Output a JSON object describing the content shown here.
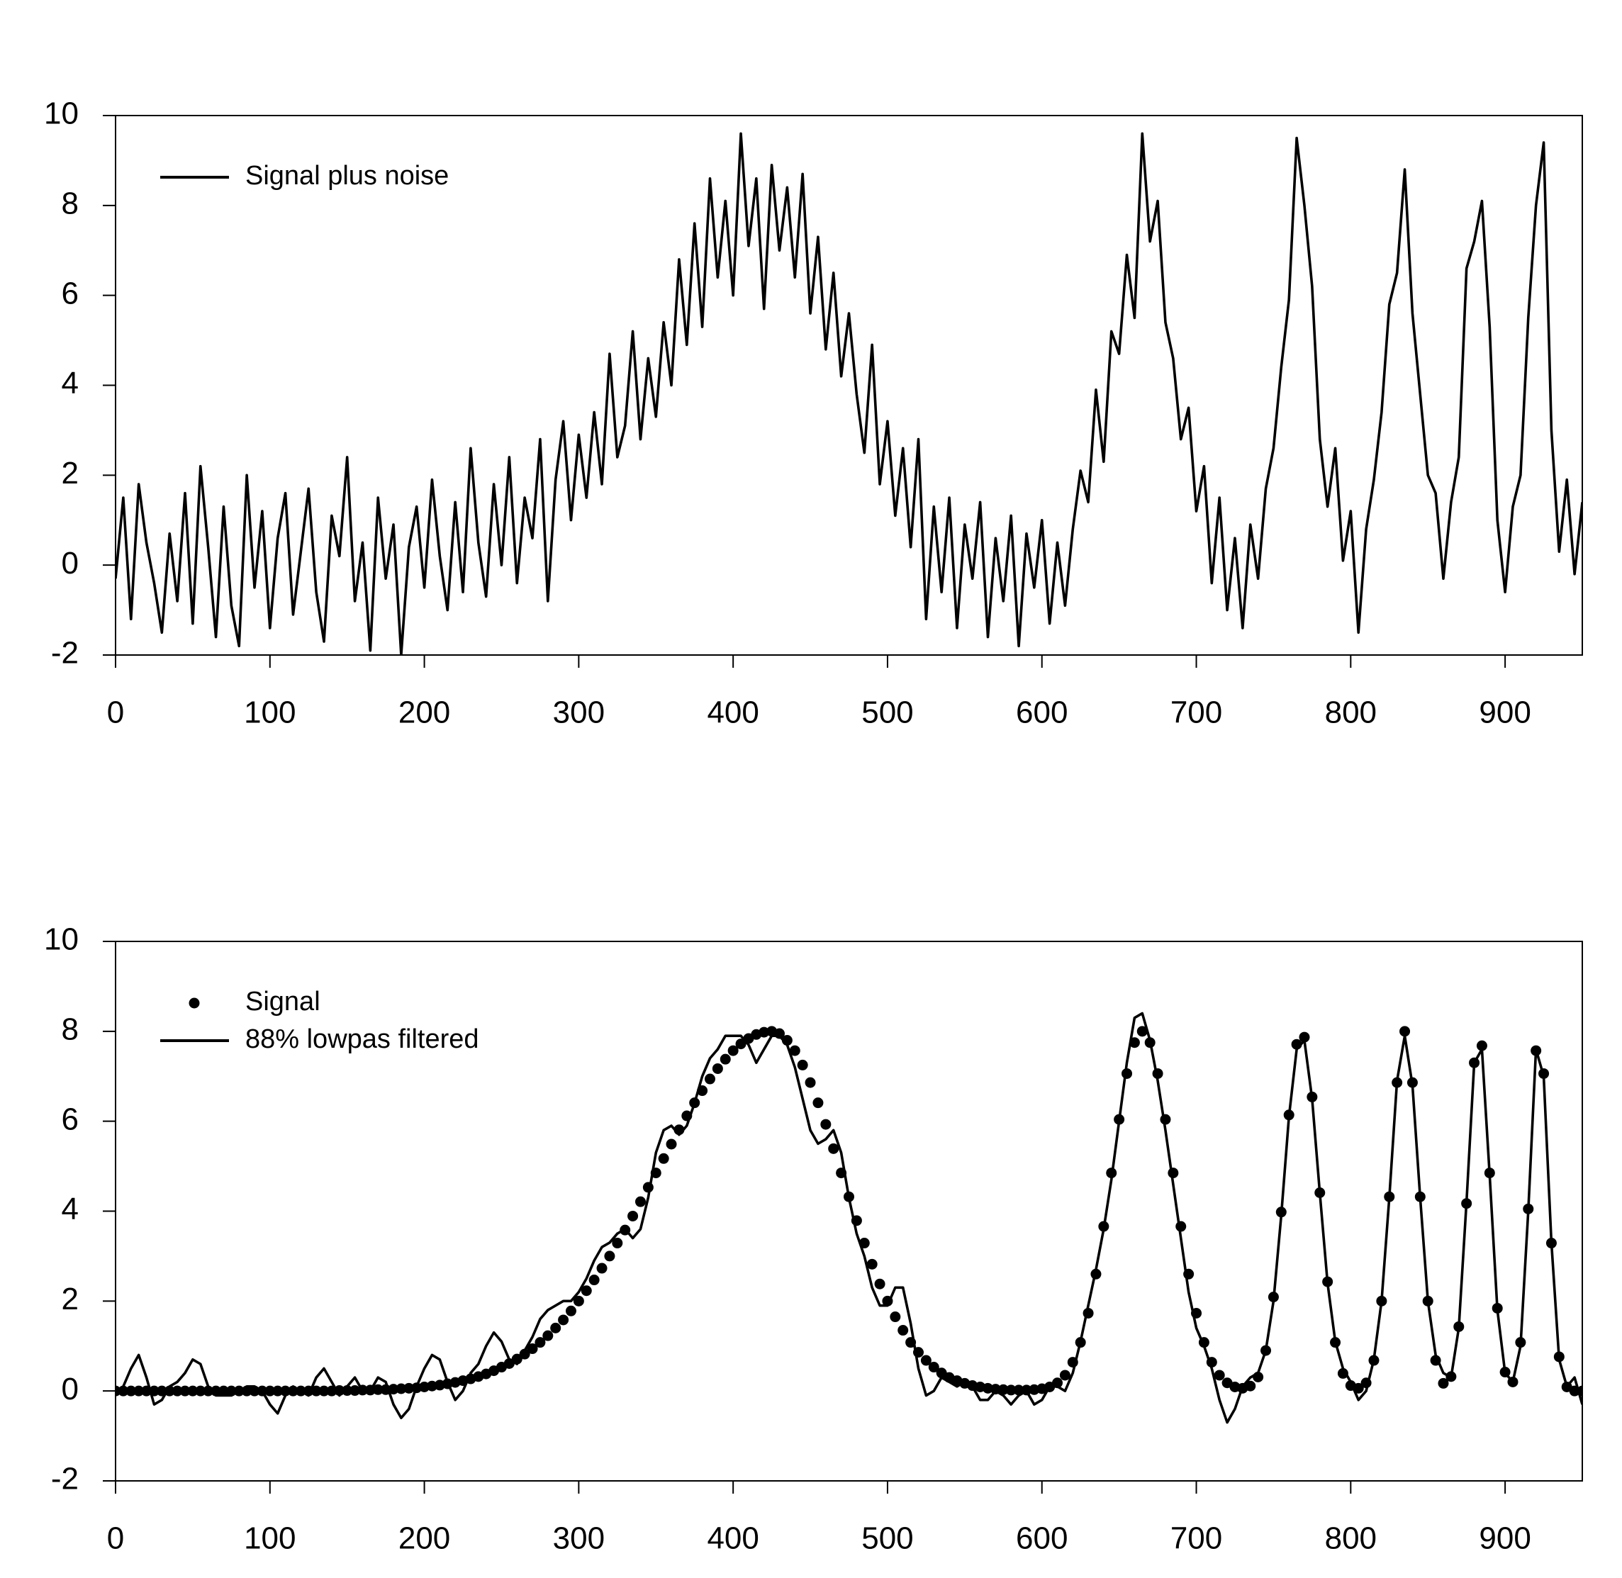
{
  "chart_data": [
    {
      "type": "line",
      "legend": "upper left",
      "xlim": [
        0,
        950
      ],
      "ylim": [
        -2,
        10
      ],
      "xticks": [
        0,
        100,
        200,
        300,
        400,
        500,
        600,
        700,
        800,
        900
      ],
      "yticks": [
        -2,
        0,
        2,
        4,
        6,
        8,
        10
      ],
      "x": [
        0,
        5,
        10,
        15,
        20,
        25,
        30,
        35,
        40,
        45,
        50,
        55,
        60,
        65,
        70,
        75,
        80,
        85,
        90,
        95,
        100,
        105,
        110,
        115,
        120,
        125,
        130,
        135,
        140,
        145,
        150,
        155,
        160,
        165,
        170,
        175,
        180,
        185,
        190,
        195,
        200,
        205,
        210,
        215,
        220,
        225,
        230,
        235,
        240,
        245,
        250,
        255,
        260,
        265,
        270,
        275,
        280,
        285,
        290,
        295,
        300,
        305,
        310,
        315,
        320,
        325,
        330,
        335,
        340,
        345,
        350,
        355,
        360,
        365,
        370,
        375,
        380,
        385,
        390,
        395,
        400,
        405,
        410,
        415,
        420,
        425,
        430,
        435,
        440,
        445,
        450,
        455,
        460,
        465,
        470,
        475,
        480,
        485,
        490,
        495,
        500,
        505,
        510,
        515,
        520,
        525,
        530,
        535,
        540,
        545,
        550,
        555,
        560,
        565,
        570,
        575,
        580,
        585,
        590,
        595,
        600,
        605,
        610,
        615,
        620,
        625,
        630,
        635,
        640,
        645,
        650,
        655,
        660,
        665,
        670,
        675,
        680,
        685,
        690,
        695,
        700,
        705,
        710,
        715,
        720,
        725,
        730,
        735,
        740,
        745,
        750,
        755,
        760,
        765,
        770,
        775,
        780,
        785,
        790,
        795,
        800,
        805,
        810,
        815,
        820,
        825,
        830,
        835,
        840,
        845,
        850,
        855,
        860,
        865,
        870,
        875,
        880,
        885,
        890,
        895,
        900,
        905,
        910,
        915,
        920,
        925,
        930,
        935,
        940,
        945,
        950
      ],
      "series": [
        {
          "name": "Signal plus noise",
          "mode": "line",
          "color": "#000000",
          "values": [
            -0.3,
            1.5,
            -1.2,
            1.8,
            0.5,
            -0.4,
            -1.5,
            0.7,
            -0.8,
            1.6,
            -1.3,
            2.2,
            0.4,
            -1.6,
            1.3,
            -0.9,
            -1.8,
            2.0,
            -0.5,
            1.2,
            -1.4,
            0.6,
            1.6,
            -1.1,
            0.3,
            1.7,
            -0.6,
            -1.7,
            1.1,
            0.2,
            2.4,
            -0.8,
            0.5,
            -1.9,
            1.5,
            -0.3,
            0.9,
            -2.0,
            0.4,
            1.3,
            -0.5,
            1.9,
            0.2,
            -1.0,
            1.4,
            -0.6,
            2.6,
            0.5,
            -0.7,
            1.8,
            0.0,
            2.4,
            -0.4,
            1.5,
            0.6,
            2.8,
            -0.8,
            1.9,
            3.2,
            1.0,
            2.9,
            1.5,
            3.4,
            1.8,
            4.7,
            2.4,
            3.1,
            5.2,
            2.8,
            4.6,
            3.3,
            5.4,
            4.0,
            6.8,
            4.9,
            7.6,
            5.3,
            8.6,
            6.4,
            8.1,
            6.0,
            9.6,
            7.1,
            8.6,
            5.7,
            8.9,
            7.0,
            8.4,
            6.4,
            8.7,
            5.6,
            7.3,
            4.8,
            6.5,
            4.2,
            5.6,
            3.8,
            2.5,
            4.9,
            1.8,
            3.2,
            1.1,
            2.6,
            0.4,
            2.8,
            -1.2,
            1.3,
            -0.6,
            1.5,
            -1.4,
            0.9,
            -0.3,
            1.4,
            -1.6,
            0.6,
            -0.8,
            1.1,
            -1.8,
            0.7,
            -0.5,
            1.0,
            -1.3,
            0.5,
            -0.9,
            0.8,
            2.1,
            1.4,
            3.9,
            2.3,
            5.2,
            4.7,
            6.9,
            5.5,
            9.6,
            7.2,
            8.1,
            5.4,
            4.6,
            2.8,
            3.5,
            1.2,
            2.2,
            -0.4,
            1.5,
            -1.0,
            0.6,
            -1.4,
            0.9,
            -0.3,
            1.7,
            2.6,
            4.4,
            5.9,
            9.5,
            8.0,
            6.2,
            2.8,
            1.3,
            2.6,
            0.1,
            1.2,
            -1.5,
            0.8,
            1.9,
            3.4,
            5.8,
            6.5,
            8.8,
            5.6,
            3.8,
            2.0,
            1.6,
            -0.3,
            1.4,
            2.4,
            6.6,
            7.2,
            8.1,
            5.3,
            1.0,
            -0.6,
            1.3,
            2.0,
            5.5,
            8.0,
            9.4,
            3.0,
            0.3,
            1.9,
            -0.2,
            1.4
          ]
        }
      ]
    },
    {
      "type": "line",
      "legend": "upper left",
      "xlim": [
        0,
        950
      ],
      "ylim": [
        -2,
        10
      ],
      "xticks": [
        0,
        100,
        200,
        300,
        400,
        500,
        600,
        700,
        800,
        900
      ],
      "yticks": [
        -2,
        0,
        2,
        4,
        6,
        8,
        10
      ],
      "x": [
        0,
        5,
        10,
        15,
        20,
        25,
        30,
        35,
        40,
        45,
        50,
        55,
        60,
        65,
        70,
        75,
        80,
        85,
        90,
        95,
        100,
        105,
        110,
        115,
        120,
        125,
        130,
        135,
        140,
        145,
        150,
        155,
        160,
        165,
        170,
        175,
        180,
        185,
        190,
        195,
        200,
        205,
        210,
        215,
        220,
        225,
        230,
        235,
        240,
        245,
        250,
        255,
        260,
        265,
        270,
        275,
        280,
        285,
        290,
        295,
        300,
        305,
        310,
        315,
        320,
        325,
        330,
        335,
        340,
        345,
        350,
        355,
        360,
        365,
        370,
        375,
        380,
        385,
        390,
        395,
        400,
        405,
        410,
        415,
        420,
        425,
        430,
        435,
        440,
        445,
        450,
        455,
        460,
        465,
        470,
        475,
        480,
        485,
        490,
        495,
        500,
        505,
        510,
        515,
        520,
        525,
        530,
        535,
        540,
        545,
        550,
        555,
        560,
        565,
        570,
        575,
        580,
        585,
        590,
        595,
        600,
        605,
        610,
        615,
        620,
        625,
        630,
        635,
        640,
        645,
        650,
        655,
        660,
        665,
        670,
        675,
        680,
        685,
        690,
        695,
        700,
        705,
        710,
        715,
        720,
        725,
        730,
        735,
        740,
        745,
        750,
        755,
        760,
        765,
        770,
        775,
        780,
        785,
        790,
        795,
        800,
        805,
        810,
        815,
        820,
        825,
        830,
        835,
        840,
        845,
        850,
        855,
        860,
        865,
        870,
        875,
        880,
        885,
        890,
        895,
        900,
        905,
        910,
        915,
        920,
        925,
        930,
        935,
        940,
        945,
        950
      ],
      "series": [
        {
          "name": "Signal",
          "mode": "markers",
          "color": "#000000",
          "values": [
            0,
            0,
            0,
            0,
            0,
            0,
            0,
            0,
            0,
            0,
            0,
            0,
            0,
            0,
            0,
            0,
            0,
            0,
            0,
            0,
            0,
            0,
            0,
            0,
            0,
            0,
            0,
            0,
            0,
            0.01,
            0.01,
            0.01,
            0.02,
            0.02,
            0.03,
            0.03,
            0.04,
            0.05,
            0.06,
            0.07,
            0.09,
            0.11,
            0.13,
            0.16,
            0.19,
            0.23,
            0.27,
            0.32,
            0.38,
            0.45,
            0.53,
            0.61,
            0.71,
            0.82,
            0.94,
            1.08,
            1.23,
            1.4,
            1.58,
            1.78,
            2.0,
            2.23,
            2.47,
            2.73,
            3.0,
            3.29,
            3.58,
            3.89,
            4.21,
            4.53,
            4.85,
            5.17,
            5.49,
            5.81,
            6.12,
            6.41,
            6.68,
            6.94,
            7.17,
            7.38,
            7.57,
            7.72,
            7.84,
            7.93,
            7.98,
            8.0,
            7.95,
            7.8,
            7.57,
            7.25,
            6.86,
            6.41,
            5.93,
            5.39,
            4.85,
            4.32,
            3.79,
            3.29,
            2.82,
            2.38,
            2.0,
            1.65,
            1.35,
            1.08,
            0.86,
            0.68,
            0.53,
            0.4,
            0.3,
            0.23,
            0.17,
            0.12,
            0.09,
            0.06,
            0.04,
            0.03,
            0.02,
            0.02,
            0.02,
            0.03,
            0.05,
            0.09,
            0.18,
            0.35,
            0.64,
            1.08,
            1.73,
            2.6,
            3.66,
            4.85,
            6.04,
            7.06,
            7.75,
            8.0,
            7.75,
            7.06,
            6.04,
            4.85,
            3.66,
            2.6,
            1.73,
            1.08,
            0.64,
            0.35,
            0.18,
            0.09,
            0.06,
            0.11,
            0.31,
            0.9,
            2.09,
            3.98,
            6.14,
            7.71,
            7.87,
            6.54,
            4.41,
            2.43,
            1.08,
            0.39,
            0.12,
            0.06,
            0.18,
            0.68,
            2.0,
            4.32,
            6.86,
            8.0,
            6.86,
            4.32,
            2.0,
            0.68,
            0.17,
            0.32,
            1.43,
            4.17,
            7.3,
            7.68,
            4.85,
            1.84,
            0.42,
            0.2,
            1.08,
            4.05,
            7.57,
            7.06,
            3.29,
            0.76,
            0.09,
            0.0,
            0.0
          ]
        },
        {
          "name": "88% lowpas filtered",
          "mode": "line",
          "color": "#000000",
          "values": [
            0,
            0.1,
            0.5,
            0.8,
            0.3,
            -0.3,
            -0.2,
            0.1,
            0.2,
            0.4,
            0.7,
            0.6,
            0.1,
            -0.1,
            -0.1,
            -0.1,
            0.0,
            0.1,
            0.1,
            0.0,
            -0.3,
            -0.5,
            -0.1,
            0.1,
            0.0,
            -0.1,
            0.3,
            0.5,
            0.2,
            -0.1,
            0.1,
            0.3,
            0.0,
            0.0,
            0.3,
            0.2,
            -0.3,
            -0.6,
            -0.4,
            0.1,
            0.5,
            0.8,
            0.7,
            0.2,
            -0.2,
            0.0,
            0.4,
            0.6,
            1.0,
            1.3,
            1.1,
            0.7,
            0.6,
            0.9,
            1.2,
            1.6,
            1.8,
            1.9,
            2.0,
            2.0,
            2.2,
            2.5,
            2.9,
            3.2,
            3.3,
            3.5,
            3.6,
            3.4,
            3.6,
            4.3,
            5.3,
            5.8,
            5.9,
            5.7,
            5.9,
            6.4,
            7.0,
            7.4,
            7.6,
            7.9,
            7.9,
            7.9,
            7.7,
            7.3,
            7.6,
            7.9,
            7.9,
            7.7,
            7.2,
            6.5,
            5.8,
            5.5,
            5.6,
            5.8,
            5.3,
            4.3,
            3.5,
            3.0,
            2.3,
            1.9,
            1.9,
            2.3,
            2.3,
            1.5,
            0.5,
            -0.1,
            0.0,
            0.3,
            0.2,
            0.1,
            0.2,
            0.1,
            -0.2,
            -0.2,
            0.0,
            -0.1,
            -0.3,
            -0.1,
            0.0,
            -0.3,
            -0.2,
            0.1,
            0.1,
            0.0,
            0.4,
            1.1,
            1.9,
            2.7,
            3.6,
            4.7,
            6.0,
            7.3,
            8.3,
            8.4,
            7.8,
            6.9,
            5.8,
            4.6,
            3.4,
            2.2,
            1.4,
            1.0,
            0.5,
            -0.2,
            -0.7,
            -0.4,
            0.1,
            0.3,
            0.4,
            0.9,
            2.0,
            3.9,
            6.1,
            7.6,
            7.8,
            6.5,
            4.4,
            2.4,
            1.1,
            0.5,
            0.2,
            -0.2,
            0.0,
            0.7,
            2.0,
            4.3,
            6.9,
            7.9,
            6.8,
            4.3,
            2.0,
            0.8,
            0.4,
            0.3,
            1.4,
            4.2,
            7.3,
            7.6,
            4.8,
            1.8,
            0.4,
            0.2,
            1.0,
            4.0,
            7.6,
            7.0,
            3.3,
            0.7,
            0.1,
            0.3,
            -0.3
          ]
        }
      ]
    }
  ]
}
